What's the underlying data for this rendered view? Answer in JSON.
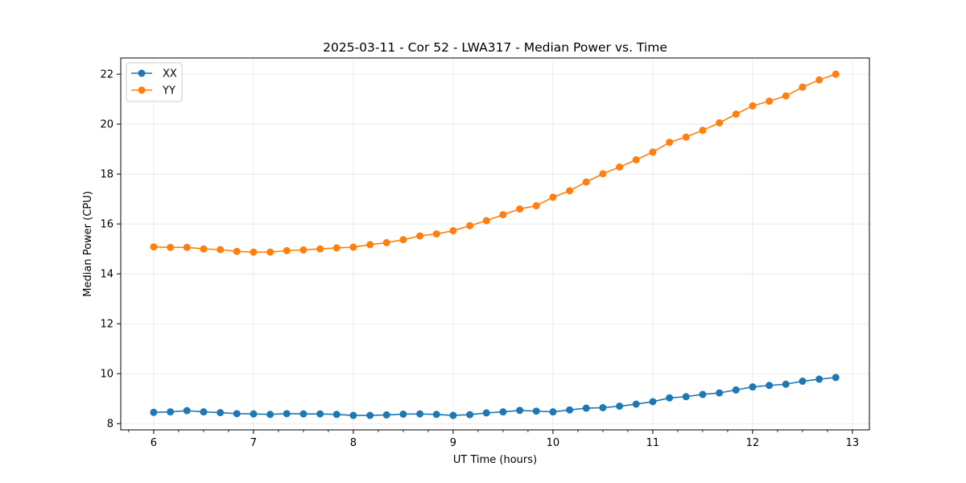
{
  "chart_data": {
    "type": "line",
    "title": "2025-03-11 - Cor 52 - LWA317 - Median Power vs. Time",
    "xlabel": "UT Time (hours)",
    "ylabel": "Median Power (CPU)",
    "xlim": [
      5.67,
      13.17
    ],
    "ylim": [
      7.75,
      22.65
    ],
    "xticks": [
      6,
      7,
      8,
      9,
      10,
      11,
      12,
      13
    ],
    "yticks": [
      8,
      10,
      12,
      14,
      16,
      18,
      20,
      22
    ],
    "grid": true,
    "legend_position": "top-left",
    "x": [
      6.0,
      6.167,
      6.333,
      6.5,
      6.667,
      6.833,
      7.0,
      7.167,
      7.333,
      7.5,
      7.667,
      7.833,
      8.0,
      8.167,
      8.333,
      8.5,
      8.667,
      8.833,
      9.0,
      9.167,
      9.333,
      9.5,
      9.667,
      9.833,
      10.0,
      10.167,
      10.333,
      10.5,
      10.667,
      10.833,
      11.0,
      11.167,
      11.333,
      11.5,
      11.667,
      11.833,
      12.0,
      12.167,
      12.333,
      12.5,
      12.667,
      12.833
    ],
    "series": [
      {
        "name": "XX",
        "color": "#1f77b4",
        "values": [
          8.45,
          8.47,
          8.52,
          8.47,
          8.44,
          8.4,
          8.39,
          8.37,
          8.4,
          8.39,
          8.39,
          8.37,
          8.33,
          8.33,
          8.35,
          8.38,
          8.39,
          8.37,
          8.33,
          8.36,
          8.43,
          8.47,
          8.53,
          8.5,
          8.47,
          8.55,
          8.62,
          8.64,
          8.7,
          8.78,
          8.88,
          9.03,
          9.08,
          9.17,
          9.23,
          9.35,
          9.47,
          9.53,
          9.58,
          9.7,
          9.78,
          9.85
        ]
      },
      {
        "name": "YY",
        "color": "#ff7f0e",
        "values": [
          15.08,
          15.06,
          15.06,
          15.0,
          14.97,
          14.9,
          14.87,
          14.87,
          14.93,
          14.96,
          15.0,
          15.04,
          15.07,
          15.17,
          15.25,
          15.37,
          15.52,
          15.6,
          15.73,
          15.93,
          16.13,
          16.37,
          16.6,
          16.73,
          17.07,
          17.33,
          17.68,
          18.01,
          18.28,
          18.57,
          18.88,
          19.27,
          19.48,
          19.75,
          20.05,
          20.4,
          20.73,
          20.92,
          21.13,
          21.48,
          21.77,
          22.0
        ]
      }
    ]
  }
}
